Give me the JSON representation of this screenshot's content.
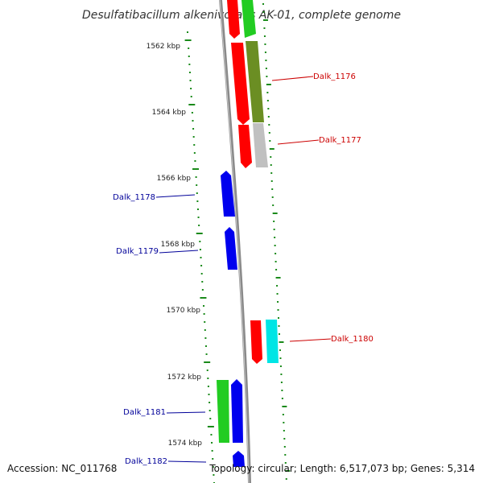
{
  "title": "Desulfatibacillum alkenivorans AK-01, complete genome",
  "accession_text": "Accession: NC_011768",
  "summary_text": "Topology: circular; Length: 6,517,073 bp; Genes: 5,314",
  "ticks": [
    "1562 kbp",
    "1564 kbp",
    "1566 kbp",
    "1568 kbp",
    "1570 kbp",
    "1572 kbp",
    "1574 kbp"
  ],
  "colors": {
    "forward_label": "#cc0000",
    "reverse_label": "#000099",
    "tick_dash": "#1a8a1a",
    "red": "#ff0000",
    "blue": "#0000ee",
    "green": "#22bb22",
    "olive": "#6b8e23",
    "gray": "#bbbbbb",
    "cyan": "#00e5e5"
  },
  "genes": [
    {
      "label": "Dalk_1176"
    },
    {
      "label": "Dalk_1177"
    },
    {
      "label": "Dalk_1178"
    },
    {
      "label": "Dalk_1179"
    },
    {
      "label": "Dalk_1180"
    },
    {
      "label": "Dalk_1181"
    },
    {
      "label": "Dalk_1182"
    }
  ]
}
